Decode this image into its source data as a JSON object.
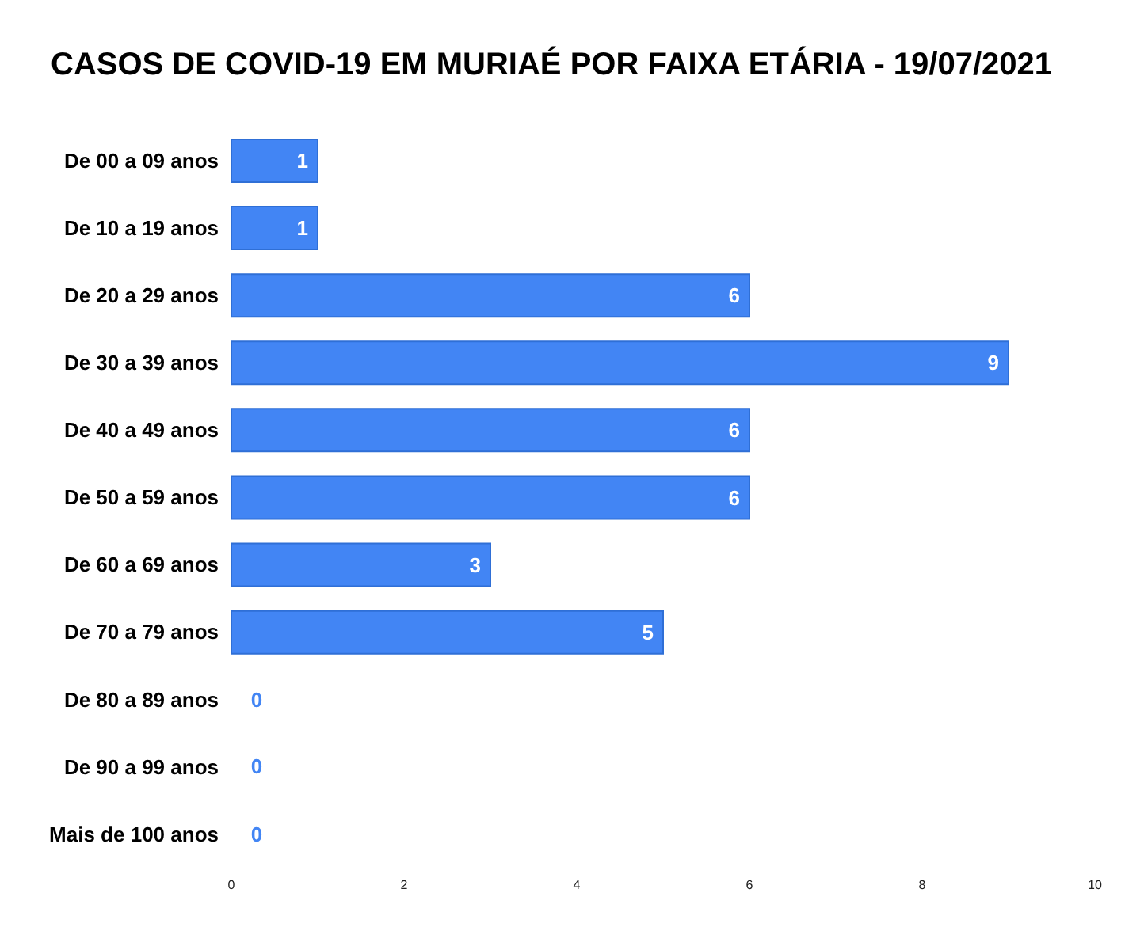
{
  "chart_data": {
    "type": "bar",
    "orientation": "horizontal",
    "title": "CASOS DE COVID-19 EM MURIAÉ POR FAIXA ETÁRIA - 19/07/2021",
    "categories": [
      "De 00 a 09 anos",
      "De 10 a 19 anos",
      "De 20 a 29 anos",
      "De 30 a 39 anos",
      "De 40 a 49 anos",
      "De 50 a 59 anos",
      "De 60 a 69 anos",
      "De 70 a 79 anos",
      "De 80 a 89 anos",
      "De 90 a 99 anos",
      "Mais de 100 anos"
    ],
    "values": [
      1,
      1,
      6,
      9,
      6,
      6,
      3,
      5,
      0,
      0,
      0
    ],
    "color": "#4285f4",
    "xlim": [
      0,
      10
    ],
    "xticks": [
      0,
      2,
      4,
      6,
      8,
      10
    ],
    "data_labels": true,
    "grid": false,
    "legend": false
  }
}
